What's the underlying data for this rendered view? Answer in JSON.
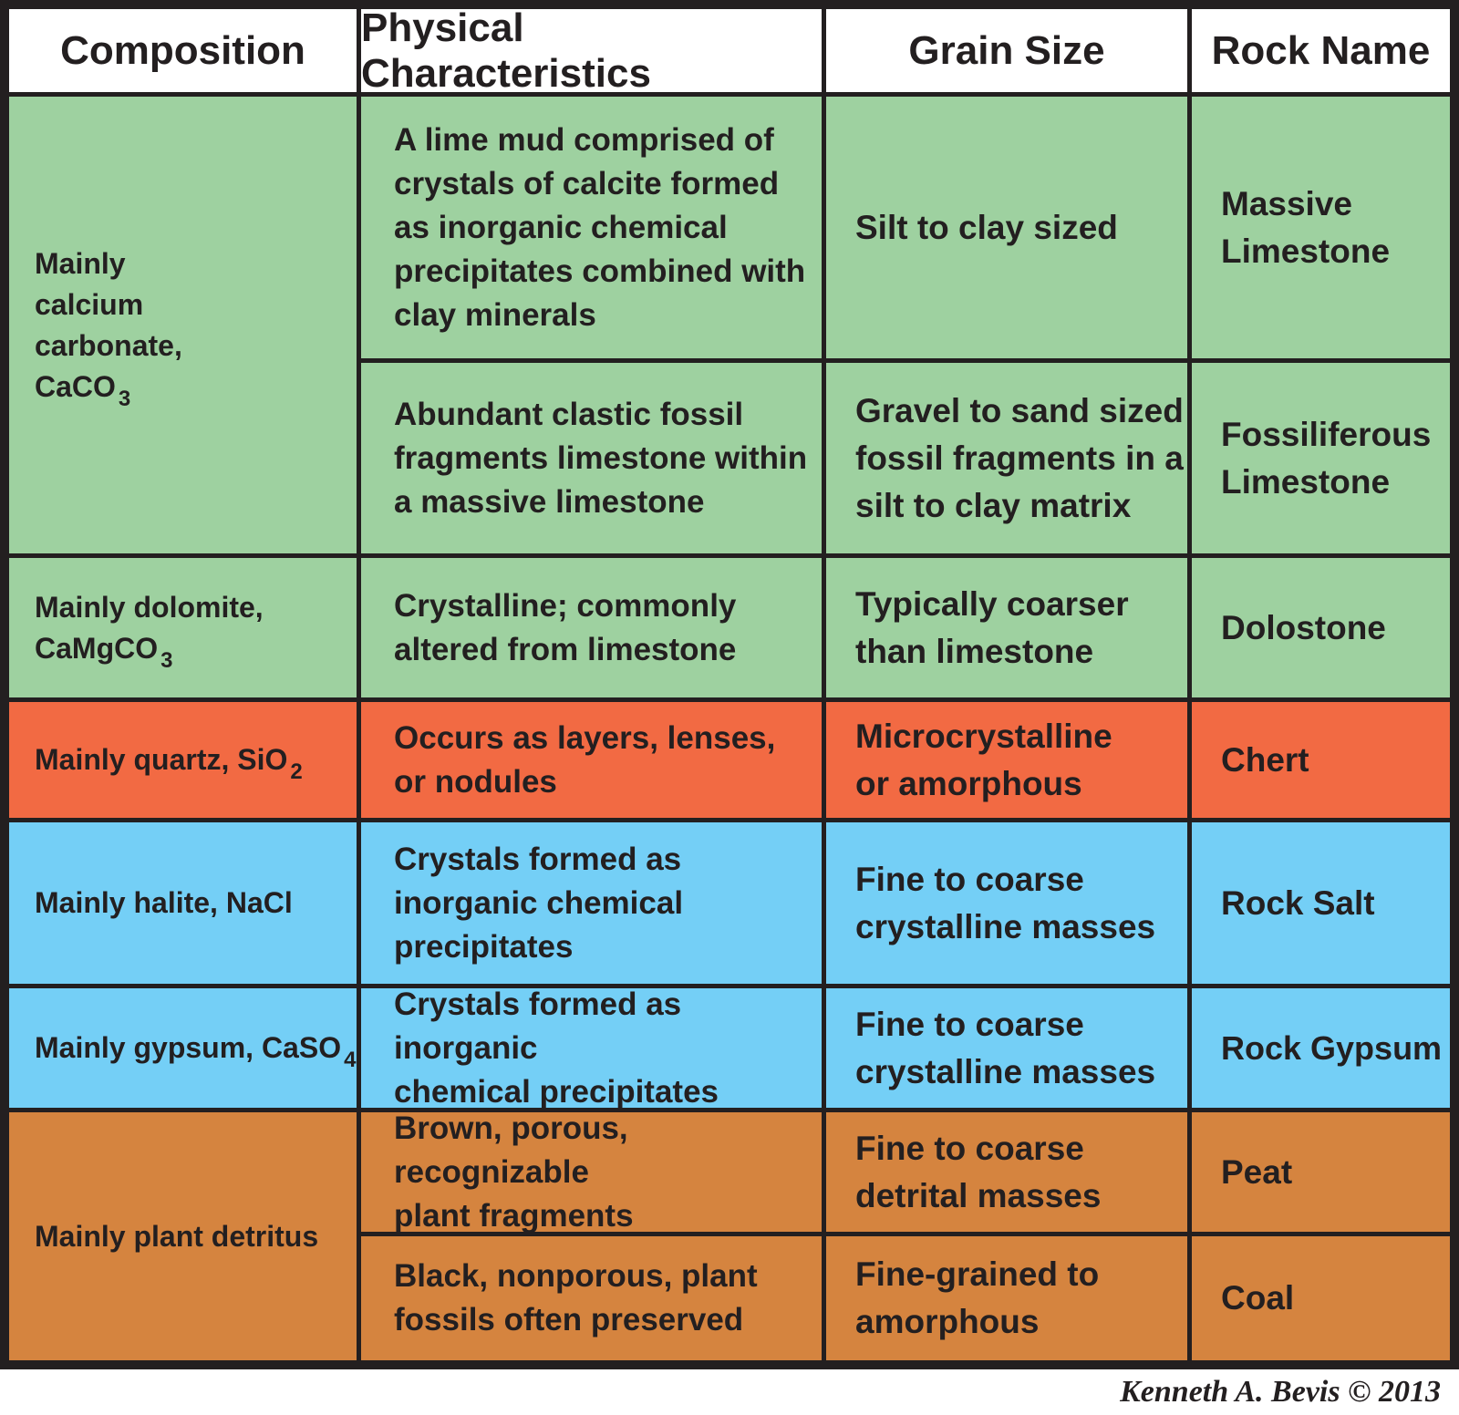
{
  "headers": {
    "composition": "Composition",
    "physical": "Physical Characteristics",
    "grain": "Grain Size",
    "rock_name": "Rock Name"
  },
  "colors": {
    "green": "#9ed1a0",
    "red": "#f26a43",
    "blue": "#74cff6",
    "orange": "#d5843f",
    "border": "#231f20"
  },
  "rows": {
    "calcium": {
      "composition": {
        "text": "Mainly\ncalcium\ncarbonate,\nCaCO",
        "sub": "3"
      },
      "massive": {
        "physical": "A lime mud comprised of\ncrystals of calcite formed\nas inorganic chemical\nprecipitates combined with\nclay minerals",
        "grain": "Silt to clay sized",
        "name": "Massive\nLimestone"
      },
      "fossil": {
        "physical": "Abundant clastic fossil\nfragments limestone within\na massive limestone",
        "grain": "Gravel to sand sized\nfossil fragments in a\nsilt to clay matrix",
        "name": "Fossiliferous\nLimestone"
      }
    },
    "dolomite": {
      "composition": {
        "text": "Mainly dolomite,\nCaMgCO",
        "sub": "3"
      },
      "physical": "Crystalline; commonly\naltered from limestone",
      "grain": "Typically coarser\nthan limestone",
      "name": "Dolostone"
    },
    "quartz": {
      "composition": {
        "text": "Mainly quartz, SiO",
        "sub": "2"
      },
      "physical": "Occurs as layers, lenses,\nor nodules",
      "grain": "Microcrystalline\nor amorphous",
      "name": "Chert"
    },
    "halite": {
      "composition": {
        "text": "Mainly halite, NaCl",
        "sub": ""
      },
      "physical": "Crystals formed as\ninorganic chemical\nprecipitates",
      "grain": "Fine to coarse\ncrystalline masses",
      "name": "Rock Salt"
    },
    "gypsum": {
      "composition": {
        "text": "Mainly gypsum, CaSO",
        "sub": "4"
      },
      "physical": "Crystals formed as inorganic\nchemical precipitates",
      "grain": "Fine to coarse\ncrystalline masses",
      "name": "Rock Gypsum"
    },
    "plant": {
      "composition": {
        "text": "Mainly plant detritus",
        "sub": ""
      },
      "peat": {
        "physical": "Brown, porous, recognizable\nplant fragments",
        "grain": "Fine to coarse\ndetrital masses",
        "name": "Peat"
      },
      "coal": {
        "physical": "Black, nonporous, plant\nfossils often preserved",
        "grain": "Fine-grained to\namorphous",
        "name": "Coal"
      }
    }
  },
  "credit": "Kenneth A. Bevis © 2013"
}
